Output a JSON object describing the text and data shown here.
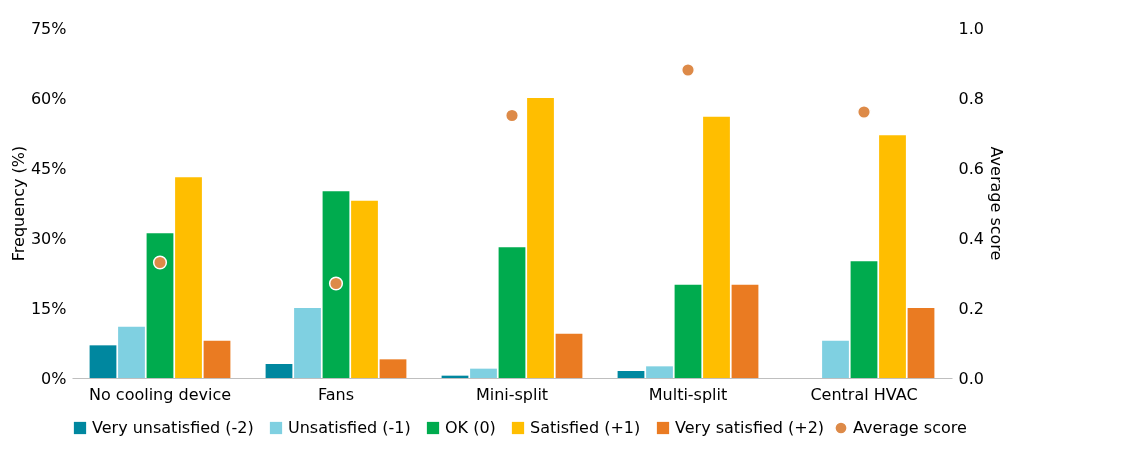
{
  "chart_data": {
    "type": "bar",
    "ylabel": "Frequency (%)",
    "y2label": "Average score",
    "categories": [
      "No cooling device",
      "Fans",
      "Mini-split",
      "Multi-split",
      "Central HVAC"
    ],
    "series": [
      {
        "name": "Very unsatisfied (-2)",
        "color": "#00879f",
        "values": [
          7,
          3,
          0.5,
          1.5,
          0
        ]
      },
      {
        "name": "Unsatisfied (-1)",
        "color": "#7fd0e1",
        "values": [
          11,
          15,
          2,
          2.5,
          8
        ]
      },
      {
        "name": "OK (0)",
        "color": "#00ab4e",
        "values": [
          31,
          40,
          28,
          20,
          25
        ]
      },
      {
        "name": "Satisfied (+1)",
        "color": "#ffbe00",
        "values": [
          43,
          38,
          60,
          56,
          52
        ]
      },
      {
        "name": "Very satisfied (+2)",
        "color": "#ea7b22",
        "values": [
          8,
          4,
          9.5,
          20,
          15
        ]
      },
      {
        "name": "Average score",
        "type": "scatter",
        "axis": "y2",
        "color": "#dd8a48",
        "values": [
          0.33,
          0.27,
          0.75,
          0.88,
          0.76
        ]
      }
    ],
    "ylim": [
      0,
      75
    ],
    "yticks": [
      {
        "value": 0,
        "label": "0%"
      },
      {
        "value": 15,
        "label": "15%"
      },
      {
        "value": 30,
        "label": "30%"
      },
      {
        "value": 45,
        "label": "45%"
      },
      {
        "value": 60,
        "label": "60%"
      },
      {
        "value": 75,
        "label": "75%"
      }
    ],
    "y2lim": [
      0,
      1
    ],
    "y2ticks": [
      {
        "value": 0,
        "label": "0.0"
      },
      {
        "value": 0.2,
        "label": "0.2"
      },
      {
        "value": 0.4,
        "label": "0.4"
      },
      {
        "value": 0.6,
        "label": "0.6"
      },
      {
        "value": 0.8,
        "label": "0.8"
      },
      {
        "value": 1,
        "label": "1.0"
      }
    ],
    "legend": "bottom",
    "marker": "circle",
    "grid": false
  }
}
